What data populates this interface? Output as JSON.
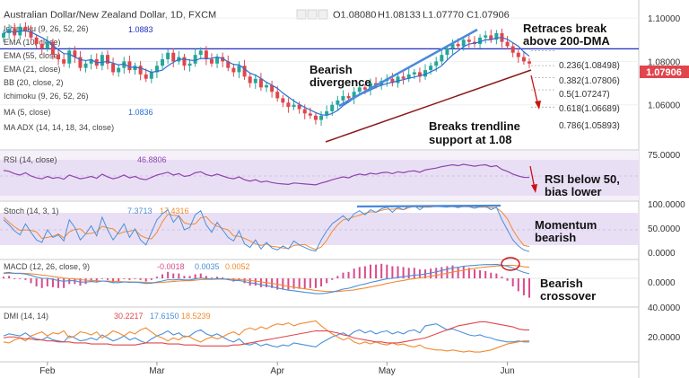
{
  "header": {
    "symbol": "Australian Dollar/New Zealand Dollar, 1D, FXCM",
    "ohlc": {
      "o": "O1.08080",
      "h": "H1.08133",
      "l": "L1.07770",
      "c": "C1.07906"
    }
  },
  "colors": {
    "up": "#26a69a",
    "down": "#e0464c",
    "ma200": "#1f2ec0",
    "ma5": "#2a6fd1",
    "trend": "#4a89dc",
    "support": "#8b1a1a",
    "rsi_fill": "#e9dff5",
    "rsi_line": "#8e44ad",
    "stoch_k": "#4a90d9",
    "stoch_d": "#f28b30",
    "macd_line": "#4a90d9",
    "macd_signal": "#f28b30",
    "macd_hist": "#d94b8c",
    "dmi_plus": "#4a90d9",
    "dmi_minus": "#f28b30",
    "adx": "#e0464c",
    "annotation_arrow": "#cc1111"
  },
  "chart_data": [
    {
      "type": "candlestick",
      "title": "Australian Dollar/New Zealand Dollar, 1D, FXCM",
      "last_price": "1.07906",
      "ylim": [
        1.04,
        1.105
      ],
      "yticks": [
        "1.10000",
        "1.08000",
        "1.06000"
      ],
      "xticks": [
        "Feb",
        "Mar",
        "Apr",
        "May",
        "Jun"
      ],
      "closes": [
        1.093,
        1.095,
        1.092,
        1.096,
        1.094,
        1.091,
        1.088,
        1.086,
        1.089,
        1.083,
        1.081,
        1.079,
        1.085,
        1.082,
        1.077,
        1.079,
        1.081,
        1.078,
        1.083,
        1.079,
        1.075,
        1.077,
        1.08,
        1.076,
        1.078,
        1.074,
        1.072,
        1.075,
        1.078,
        1.081,
        1.084,
        1.08,
        1.082,
        1.078,
        1.079,
        1.083,
        1.085,
        1.081,
        1.079,
        1.082,
        1.08,
        1.077,
        1.075,
        1.078,
        1.073,
        1.07,
        1.072,
        1.068,
        1.069,
        1.066,
        1.063,
        1.061,
        1.059,
        1.06,
        1.058,
        1.056,
        1.055,
        1.053,
        1.055,
        1.057,
        1.06,
        1.062,
        1.064,
        1.063,
        1.066,
        1.068,
        1.067,
        1.07,
        1.069,
        1.071,
        1.072,
        1.07,
        1.073,
        1.072,
        1.074,
        1.075,
        1.073,
        1.076,
        1.078,
        1.08,
        1.083,
        1.086,
        1.088,
        1.087,
        1.09,
        1.089,
        1.088,
        1.091,
        1.092,
        1.09,
        1.093,
        1.089,
        1.087,
        1.084,
        1.082,
        1.08,
        1.079
      ],
      "indicators": [
        {
          "name": "Ichimoku (9, 26, 52, 26)"
        },
        {
          "name": "EMA (10, close)",
          "value": "1.0883"
        },
        {
          "name": "EMA (55, close)"
        },
        {
          "name": "EMA (21, close)"
        },
        {
          "name": "BB (20, close, 2)"
        },
        {
          "name": "Ichimoku (9, 26, 52, 26)"
        },
        {
          "name": "MA (5, close)",
          "value": "1.0836"
        }
      ],
      "fib_levels": [
        {
          "label": "0.236(1.08498)",
          "value": 1.08498
        },
        {
          "label": "0.382(1.07806)",
          "value": 1.07806
        },
        {
          "label": "0.5(1.07247)",
          "value": 1.07247
        },
        {
          "label": "0.618(1.06689)",
          "value": 1.06689
        },
        {
          "label": "0.786(1.05893)",
          "value": 1.05893
        }
      ],
      "annotations": [
        {
          "text": [
            "Retraces break",
            "above 200-DMA"
          ]
        },
        {
          "text": [
            "Bearish",
            "divergence"
          ]
        },
        {
          "text": [
            "Breaks trendline",
            "support at 1.08"
          ]
        }
      ]
    },
    {
      "type": "line",
      "title": "RSI (14, close)",
      "value": "46.8806",
      "ylim": [
        0,
        100
      ],
      "yticks": [
        "75.0000"
      ],
      "values": [
        62,
        60,
        55,
        52,
        57,
        50,
        46,
        44,
        49,
        45,
        47,
        43,
        52,
        48,
        44,
        46,
        49,
        45,
        54,
        48,
        44,
        47,
        52,
        46,
        49,
        44,
        42,
        47,
        52,
        55,
        58,
        52,
        55,
        49,
        51,
        57,
        59,
        53,
        50,
        54,
        50,
        46,
        44,
        48,
        42,
        39,
        42,
        37,
        39,
        36,
        34,
        33,
        32,
        35,
        34,
        33,
        32,
        31,
        35,
        38,
        42,
        45,
        48,
        46,
        51,
        54,
        52,
        56,
        54,
        57,
        58,
        55,
        59,
        57,
        60,
        61,
        58,
        63,
        65,
        67,
        70,
        72,
        74,
        72,
        75,
        73,
        71,
        73,
        74,
        70,
        72,
        64,
        60,
        54,
        50,
        47,
        47
      ],
      "annotation": {
        "text": [
          "RSI below 50,",
          "bias lower"
        ]
      }
    },
    {
      "type": "line",
      "title": "Stoch (14, 3, 1)",
      "values_label": [
        "7.3713",
        "17.4316"
      ],
      "ylim": [
        0,
        100
      ],
      "yticks": [
        "100.0000",
        "50.0000",
        "0.0000"
      ],
      "series": [
        {
          "name": "%K",
          "values": [
            70,
            60,
            48,
            40,
            62,
            45,
            30,
            25,
            50,
            35,
            40,
            28,
            70,
            55,
            30,
            42,
            58,
            38,
            75,
            50,
            30,
            45,
            62,
            35,
            52,
            30,
            20,
            45,
            70,
            82,
            90,
            65,
            78,
            50,
            55,
            80,
            88,
            60,
            45,
            65,
            50,
            35,
            28,
            48,
            22,
            15,
            30,
            12,
            25,
            14,
            10,
            18,
            12,
            28,
            20,
            15,
            10,
            8,
            30,
            48,
            62,
            70,
            78,
            68,
            82,
            88,
            80,
            90,
            85,
            92,
            95,
            85,
            95,
            90,
            97,
            98,
            90,
            98,
            98,
            97,
            96,
            95,
            97,
            94,
            98,
            96,
            93,
            96,
            97,
            90,
            95,
            70,
            50,
            30,
            18,
            10,
            7
          ]
        },
        {
          "name": "%D",
          "values": [
            75,
            65,
            56,
            49,
            50,
            49,
            46,
            33,
            35,
            37,
            42,
            34,
            46,
            51,
            52,
            42,
            43,
            46,
            57,
            54,
            52,
            42,
            46,
            47,
            50,
            39,
            34,
            32,
            45,
            66,
            81,
            79,
            78,
            64,
            61,
            62,
            74,
            76,
            64,
            57,
            53,
            50,
            38,
            37,
            33,
            28,
            22,
            19,
            22,
            17,
            16,
            14,
            13,
            19,
            20,
            21,
            15,
            11,
            16,
            29,
            47,
            60,
            70,
            72,
            76,
            79,
            83,
            86,
            85,
            89,
            91,
            91,
            92,
            90,
            94,
            97,
            95,
            95,
            95,
            98,
            97,
            96,
            96,
            95,
            96,
            96,
            96,
            95,
            95,
            94,
            94,
            85,
            72,
            50,
            33,
            19,
            17
          ]
        }
      ],
      "annotation": {
        "text": [
          "Momentum",
          "bearish"
        ]
      }
    },
    {
      "type": "line",
      "title": "MACD (12, 26, close, 9)",
      "values_label": [
        "-0.0018",
        "0.0035",
        "0.0052"
      ],
      "ylim": [
        -0.01,
        0.006
      ],
      "yticks": [
        "0.0000"
      ],
      "series": [
        {
          "name": "MACD",
          "values": [
            0.002,
            0.0022,
            0.0018,
            0.0018,
            0.0016,
            0.0011,
            0.0005,
            0.0,
            0.0,
            -0.0004,
            -0.0008,
            -0.0011,
            -0.0008,
            -0.0009,
            -0.0014,
            -0.0014,
            -0.0012,
            -0.0014,
            -0.001,
            -0.0012,
            -0.0016,
            -0.0016,
            -0.0013,
            -0.0015,
            -0.0014,
            -0.0016,
            -0.0019,
            -0.0018,
            -0.0014,
            -0.001,
            -0.0005,
            -0.0006,
            -0.0004,
            -0.0006,
            -0.0006,
            -0.0002,
            0.0001,
            -0.0001,
            -0.0003,
            -0.0001,
            -0.0002,
            -0.0005,
            -0.0008,
            -0.0008,
            -0.0012,
            -0.0017,
            -0.0019,
            -0.0024,
            -0.0027,
            -0.0031,
            -0.0036,
            -0.004,
            -0.0044,
            -0.0046,
            -0.0049,
            -0.0052,
            -0.0054,
            -0.0057,
            -0.0057,
            -0.0055,
            -0.0051,
            -0.0046,
            -0.004,
            -0.0037,
            -0.0031,
            -0.0025,
            -0.0021,
            -0.0015,
            -0.0011,
            -0.0006,
            -0.0002,
            0.0,
            0.0004,
            0.0006,
            0.0009,
            0.0012,
            0.0013,
            0.0016,
            0.002,
            0.0024,
            0.0029,
            0.0034,
            0.0039,
            0.0041,
            0.0045,
            0.0047,
            0.0048,
            0.005,
            0.0051,
            0.0051,
            0.0052,
            0.0049,
            0.0045,
            0.0038,
            0.003,
            0.0022,
            0.0017
          ]
        },
        {
          "name": "Signal",
          "values": [
            0.0018,
            0.0019,
            0.0019,
            0.0019,
            0.0018,
            0.0017,
            0.0015,
            0.0012,
            0.001,
            0.0007,
            0.0004,
            0.0001,
            -0.0001,
            -0.0002,
            -0.0005,
            -0.0007,
            -0.0008,
            -0.0009,
            -0.001,
            -0.001,
            -0.0011,
            -0.0012,
            -0.0013,
            -0.0013,
            -0.0014,
            -0.0014,
            -0.0015,
            -0.0016,
            -0.0016,
            -0.0015,
            -0.0013,
            -0.0012,
            -0.001,
            -0.0009,
            -0.0009,
            -0.0007,
            -0.0005,
            -0.0004,
            -0.0004,
            -0.0003,
            -0.0003,
            -0.0003,
            -0.0004,
            -0.0005,
            -0.0006,
            -0.0008,
            -0.001,
            -0.0013,
            -0.0016,
            -0.0019,
            -0.0022,
            -0.0026,
            -0.003,
            -0.0033,
            -0.0036,
            -0.0039,
            -0.0042,
            -0.0045,
            -0.0047,
            -0.0049,
            -0.0049,
            -0.0049,
            -0.0047,
            -0.0045,
            -0.0043,
            -0.0039,
            -0.0036,
            -0.0032,
            -0.0028,
            -0.0024,
            -0.0019,
            -0.0015,
            -0.0011,
            -0.0008,
            -0.0004,
            -0.0001,
            0.0002,
            0.0005,
            0.0008,
            0.0011,
            0.0015,
            0.0019,
            0.0023,
            0.0027,
            0.003,
            0.0034,
            0.0037,
            0.004,
            0.0042,
            0.0044,
            0.0046,
            0.0047,
            0.0048,
            0.0048,
            0.0046,
            0.0043,
            0.0041
          ]
        }
      ],
      "annotation": {
        "text": [
          "Bearish",
          "crossover"
        ]
      }
    },
    {
      "type": "line",
      "title": "DMI (14, 14)",
      "values_label": [
        "30.2217",
        "17.6150",
        "18.5239"
      ],
      "ylim": [
        0,
        50
      ],
      "yticks": [
        "40.0000",
        "20.0000"
      ],
      "series": [
        {
          "name": "+DI",
          "values": [
            24,
            26,
            25,
            24,
            27,
            23,
            21,
            20,
            23,
            20,
            19,
            18,
            24,
            22,
            19,
            20,
            22,
            20,
            25,
            22,
            19,
            21,
            24,
            20,
            22,
            19,
            17,
            21,
            24,
            26,
            29,
            25,
            27,
            23,
            24,
            28,
            30,
            26,
            24,
            26,
            23,
            20,
            18,
            21,
            16,
            15,
            17,
            14,
            16,
            14,
            13,
            15,
            14,
            17,
            16,
            15,
            14,
            13,
            17,
            20,
            23,
            25,
            27,
            24,
            28,
            30,
            27,
            29,
            26,
            28,
            29,
            26,
            28,
            26,
            29,
            30,
            27,
            34,
            35,
            36,
            33,
            30,
            31,
            29,
            27,
            25,
            24,
            25,
            23,
            22,
            20,
            19,
            18,
            18,
            19,
            18,
            18
          ]
        },
        {
          "name": "-DI",
          "values": [
            18,
            17,
            20,
            22,
            19,
            24,
            26,
            28,
            24,
            27,
            26,
            29,
            22,
            24,
            28,
            27,
            25,
            28,
            22,
            25,
            29,
            27,
            24,
            28,
            26,
            30,
            32,
            28,
            24,
            22,
            19,
            22,
            20,
            24,
            23,
            20,
            18,
            21,
            23,
            21,
            23,
            26,
            28,
            25,
            30,
            32,
            30,
            33,
            31,
            34,
            36,
            35,
            37,
            34,
            36,
            37,
            38,
            39,
            34,
            30,
            26,
            23,
            20,
            22,
            18,
            16,
            18,
            16,
            18,
            16,
            15,
            17,
            15,
            16,
            14,
            13,
            15,
            12,
            11,
            10,
            10,
            9,
            10,
            9,
            8,
            9,
            8,
            8,
            9,
            10,
            12,
            14,
            16,
            17,
            18,
            19,
            19
          ]
        },
        {
          "name": "ADX",
          "values": [
            22,
            23,
            23,
            22,
            21,
            21,
            20,
            20,
            19,
            19,
            18,
            18,
            18,
            17,
            17,
            17,
            16,
            16,
            16,
            16,
            15,
            15,
            15,
            15,
            15,
            16,
            17,
            17,
            17,
            17,
            16,
            16,
            16,
            15,
            15,
            15,
            14,
            14,
            14,
            14,
            14,
            14,
            15,
            15,
            16,
            17,
            18,
            19,
            20,
            21,
            22,
            23,
            24,
            25,
            26,
            27,
            28,
            29,
            29,
            29,
            28,
            27,
            25,
            24,
            22,
            21,
            20,
            19,
            18,
            18,
            17,
            17,
            17,
            18,
            19,
            20,
            21,
            22,
            24,
            26,
            28,
            30,
            32,
            34,
            35,
            36,
            37,
            38,
            38,
            37,
            36,
            35,
            34,
            33,
            31,
            30,
            30
          ]
        }
      ]
    }
  ]
}
